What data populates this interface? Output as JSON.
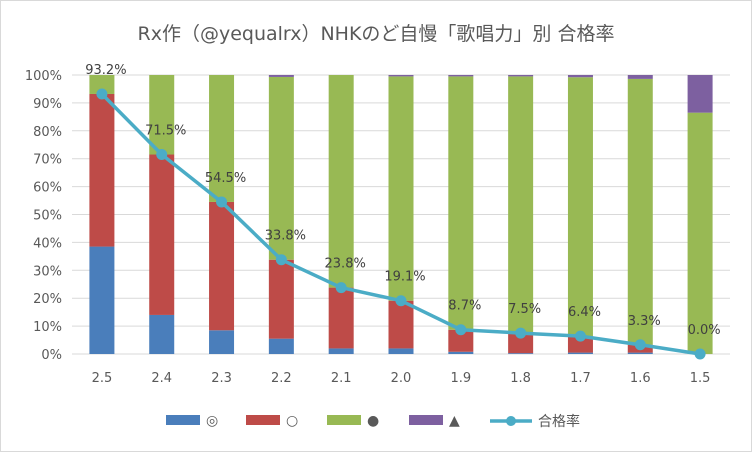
{
  "chart_data": {
    "type": "bar",
    "subtype": "stacked-100-with-line",
    "title": "Rx作（@yequalrx）NHKのど自慢「歌唱力」別 合格率",
    "categories": [
      "2.5",
      "2.4",
      "2.3",
      "2.2",
      "2.1",
      "2.0",
      "1.9",
      "1.8",
      "1.7",
      "1.6",
      "1.5"
    ],
    "yticks": [
      "0%",
      "10%",
      "20%",
      "30%",
      "40%",
      "50%",
      "60%",
      "70%",
      "80%",
      "90%",
      "100%"
    ],
    "ylim": [
      0,
      100
    ],
    "grid": true,
    "legend_position": "bottom",
    "series": [
      {
        "name": "◎",
        "color": "#4a7ebb",
        "values": [
          38.5,
          14.0,
          8.5,
          5.5,
          2.0,
          2.0,
          0.8,
          0.3,
          0.5,
          0.5,
          0.0
        ]
      },
      {
        "name": "○",
        "color": "#be4b48",
        "values": [
          54.7,
          57.5,
          46.0,
          28.3,
          21.8,
          17.1,
          7.9,
          7.2,
          5.9,
          2.8,
          0.0
        ]
      },
      {
        "name": "●",
        "color": "#98b954",
        "values": [
          6.8,
          28.5,
          45.5,
          65.5,
          76.2,
          80.4,
          90.8,
          92.0,
          92.8,
          95.3,
          86.5
        ]
      },
      {
        "name": "▲",
        "color": "#7d60a0",
        "values": [
          0.0,
          0.0,
          0.0,
          0.7,
          0.0,
          0.5,
          0.5,
          0.5,
          0.8,
          1.4,
          13.5
        ]
      }
    ],
    "line": {
      "name": "合格率",
      "color": "#4bacc6",
      "values": [
        93.2,
        71.5,
        54.5,
        33.8,
        23.8,
        19.1,
        8.7,
        7.5,
        6.4,
        3.3,
        0.0
      ],
      "labels": [
        "93.2%",
        "71.5%",
        "54.5%",
        "33.8%",
        "23.8%",
        "19.1%",
        "8.7%",
        "7.5%",
        "6.4%",
        "3.3%",
        "0.0%"
      ]
    },
    "legend": [
      {
        "kind": "bar",
        "label": "◎",
        "color": "#4a7ebb"
      },
      {
        "kind": "bar",
        "label": "○",
        "color": "#be4b48"
      },
      {
        "kind": "bar",
        "label": "●",
        "color": "#98b954"
      },
      {
        "kind": "bar",
        "label": "▲",
        "color": "#7d60a0"
      },
      {
        "kind": "line",
        "label": "合格率",
        "color": "#4bacc6"
      }
    ]
  }
}
